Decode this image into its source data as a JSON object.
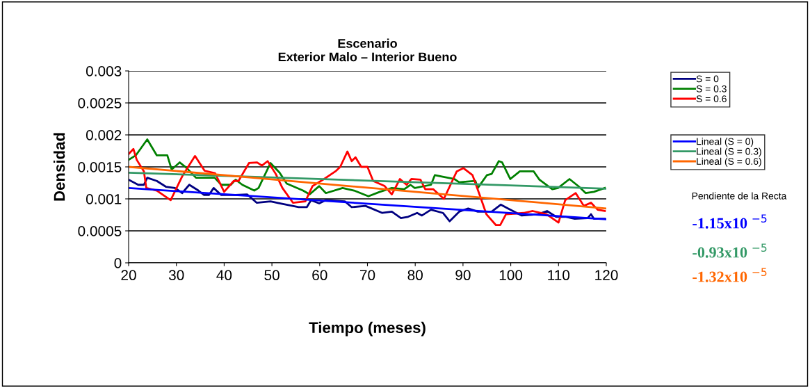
{
  "chart_data": {
    "type": "line",
    "title": "Escenario\nExterior Malo – Interior Bueno",
    "xlabel": "Tiempo (meses)",
    "ylabel": "Densidad",
    "xlim": [
      20,
      120
    ],
    "xticks": [
      20,
      30,
      40,
      50,
      60,
      70,
      80,
      90,
      100,
      110,
      120
    ],
    "ylim": [
      0,
      0.003
    ],
    "yticks": [
      0,
      0.0005,
      0.001,
      0.0015,
      0.002,
      0.0025,
      0.003
    ],
    "grid": "y",
    "legend": "right",
    "marker": "none",
    "line_style": "solid",
    "series": [
      {
        "name": "S = 0",
        "color": "#000080",
        "x": [
          20,
          22,
          23.2,
          23.9,
          25.9,
          27.8,
          29.7,
          31.2,
          32.7,
          34.6,
          35.8,
          36.8,
          37.8,
          39.4,
          42.4,
          44.8,
          46.8,
          49.7,
          51.6,
          55.6,
          57.3,
          58.2,
          59.9,
          61.3,
          65.3,
          66.7,
          69.6,
          73.1,
          75.1,
          77,
          78.5,
          80.4,
          81.4,
          83.3,
          85.8,
          87.2,
          89.2,
          91.1,
          93.1,
          96,
          97.9,
          99.4,
          102.3,
          105.7,
          107.6,
          109.5,
          111.4,
          113.4,
          116.1,
          116.8,
          117.4,
          119.7
        ],
        "values": [
          0.0013,
          0.00122,
          0.00122,
          0.00133,
          0.00128,
          0.00119,
          0.00117,
          0.00109,
          0.00122,
          0.00113,
          0.00106,
          0.00106,
          0.00117,
          0.00106,
          0.00106,
          0.00107,
          0.00094,
          0.00096,
          0.00093,
          0.00087,
          0.00087,
          0.00098,
          0.00093,
          0.00098,
          0.00096,
          0.00087,
          0.00089,
          0.00078,
          0.0008,
          0.0007,
          0.00072,
          0.00078,
          0.00074,
          0.00083,
          0.00078,
          0.00065,
          0.0008,
          0.00085,
          0.0008,
          0.0008,
          0.00091,
          0.00085,
          0.00074,
          0.00076,
          0.00081,
          0.00072,
          0.00072,
          0.00069,
          0.0007,
          0.00076,
          0.00069,
          0.00069
        ]
      },
      {
        "name": "S = 0.3",
        "color": "#008000",
        "x": [
          20,
          21.5,
          23.9,
          25.9,
          28.1,
          29,
          30.7,
          32.2,
          34.1,
          38,
          39.4,
          41.4,
          42.4,
          43.8,
          46.3,
          47.2,
          49.7,
          51.6,
          53.1,
          56.5,
          57.9,
          59.9,
          61.3,
          64.8,
          67.2,
          70.2,
          72.6,
          75.1,
          77.7,
          79,
          79.9,
          83.3,
          84.1,
          88.2,
          89.2,
          92.6,
          93.1,
          95,
          96,
          97.5,
          98.2,
          99.9,
          101.9,
          104.8,
          106,
          108.7,
          109.9,
          112.3,
          114.3,
          115.7,
          117.4,
          119.7
        ],
        "values": [
          0.00161,
          0.00168,
          0.00193,
          0.00168,
          0.00168,
          0.00146,
          0.00157,
          0.00148,
          0.00133,
          0.00133,
          0.00122,
          0.00122,
          0.0013,
          0.00122,
          0.00113,
          0.00117,
          0.00156,
          0.00141,
          0.00124,
          0.00113,
          0.00107,
          0.0012,
          0.00109,
          0.00117,
          0.00113,
          0.00104,
          0.00111,
          0.00117,
          0.00115,
          0.00122,
          0.00117,
          0.00122,
          0.00137,
          0.00131,
          0.00126,
          0.00128,
          0.00117,
          0.00137,
          0.00139,
          0.00159,
          0.00157,
          0.00131,
          0.00143,
          0.00143,
          0.0013,
          0.00115,
          0.00117,
          0.00131,
          0.00119,
          0.00109,
          0.00111,
          0.00117
        ]
      },
      {
        "name": "S = 0.6",
        "color": "#ff0000",
        "x": [
          20,
          21,
          21.7,
          23.2,
          23.7,
          25.9,
          28.8,
          31.2,
          33.9,
          35.9,
          38.1,
          40,
          42,
          43,
          45.2,
          46.9,
          47.9,
          49.1,
          50.8,
          52.2,
          54.4,
          57,
          58.5,
          60.9,
          63.3,
          64.3,
          65.8,
          66.7,
          67.5,
          68.7,
          70,
          71.2,
          73.6,
          75.1,
          76.8,
          78.2,
          79.2,
          81.1,
          82.1,
          83.8,
          86,
          88.7,
          90.1,
          92,
          93.5,
          94.9,
          96.9,
          97.8,
          99,
          102.7,
          104.6,
          107.5,
          110,
          111.4,
          113.6,
          115.3,
          116.8,
          118.2,
          119.7
        ],
        "values": [
          0.0017,
          0.00178,
          0.00161,
          0.00143,
          0.00117,
          0.00113,
          0.00098,
          0.00135,
          0.00167,
          0.00144,
          0.0014,
          0.00111,
          0.00128,
          0.00128,
          0.00156,
          0.00157,
          0.00152,
          0.00159,
          0.00139,
          0.00117,
          0.00094,
          0.00096,
          0.0012,
          0.00131,
          0.00143,
          0.0015,
          0.00174,
          0.00159,
          0.00165,
          0.0015,
          0.0015,
          0.00128,
          0.0012,
          0.00107,
          0.00131,
          0.00122,
          0.00131,
          0.0013,
          0.00115,
          0.00115,
          0.001,
          0.00143,
          0.00148,
          0.00137,
          0.00106,
          0.00076,
          0.00059,
          0.00059,
          0.00076,
          0.00078,
          0.00081,
          0.00076,
          0.00063,
          0.00098,
          0.00109,
          0.00089,
          0.00094,
          0.00083,
          0.00081
        ]
      },
      {
        "name": "Lineal (S = 0)",
        "color": "#0000ff",
        "x": [
          20,
          120
        ],
        "values": [
          0.00117,
          0.00068
        ]
      },
      {
        "name": "Lineal (S = 0.3)",
        "color": "#339966",
        "x": [
          20,
          120
        ],
        "values": [
          0.00141,
          0.00116
        ]
      },
      {
        "name": "Lineal (S = 0.6)",
        "color": "#ff6600",
        "x": [
          20,
          120
        ],
        "values": [
          0.0015,
          0.00085
        ]
      }
    ],
    "annotations": [
      "Pendiente de la Recta",
      "-1.15x10 $^{−5}$",
      "-0.93x10 $^{−5}$",
      "-1.32x10 $^{−5}$"
    ]
  }
}
